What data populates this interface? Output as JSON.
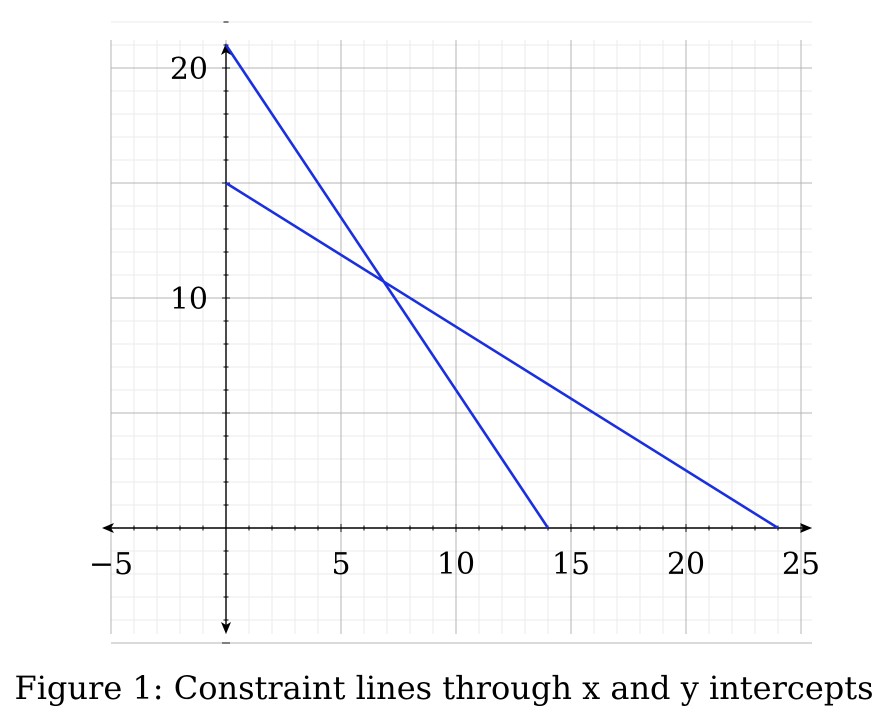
{
  "caption": "Figure 1: Constraint lines through x and y intercepts",
  "chart_data": {
    "type": "line",
    "title": "",
    "xlabel": "",
    "ylabel": "",
    "xlim": [
      -5,
      25
    ],
    "ylim": [
      -5,
      25
    ],
    "x_ticks": [
      -5,
      5,
      10,
      15,
      20,
      25
    ],
    "y_ticks": [
      10,
      20
    ],
    "x_tick_labels": [
      "−5",
      "5",
      "10",
      "15",
      "20",
      "25"
    ],
    "y_tick_labels": [
      "10",
      "20"
    ],
    "grid": true,
    "series_color": "#1a2fe0",
    "series": [
      {
        "x": [
          0,
          14
        ],
        "y": [
          21,
          0
        ]
      },
      {
        "x": [
          0,
          24
        ],
        "y": [
          15,
          0
        ]
      }
    ]
  }
}
